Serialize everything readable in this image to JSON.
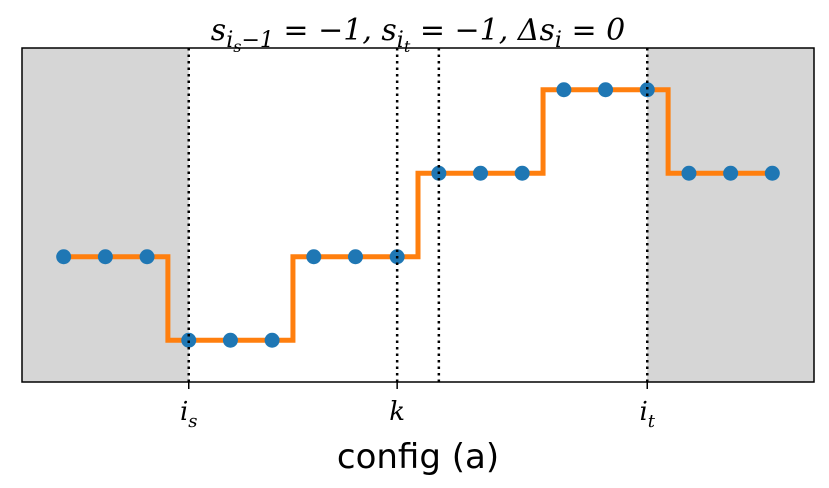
{
  "chart_data": {
    "type": "step",
    "title": [
      {
        "text": "s",
        "level": 0
      },
      {
        "text": "i",
        "level": 1
      },
      {
        "text": "s",
        "level": 2
      },
      {
        "text": "−1",
        "level": 1
      },
      {
        "text": " = −1, s",
        "level": 0
      },
      {
        "text": "i",
        "level": 1
      },
      {
        "text": "t",
        "level": 2
      },
      {
        "text": " = −1, Δs",
        "level": 0
      },
      {
        "text": "i",
        "level": 1
      },
      {
        "text": " = 0",
        "level": 0
      }
    ],
    "xlabel": "config (a)",
    "x": [
      0,
      1,
      2,
      3,
      4,
      5,
      6,
      7,
      8,
      9,
      10,
      11,
      12,
      13,
      14,
      15,
      16,
      17
    ],
    "values": [
      0,
      0,
      0,
      -1,
      -1,
      -1,
      0,
      0,
      0,
      1,
      1,
      1,
      2,
      2,
      2,
      1,
      1,
      1
    ],
    "line_color": "#ff7f0e",
    "marker_color": "#1f77b4",
    "step": "mid",
    "xlim": [
      -1,
      18
    ],
    "ylim": [
      -1.5,
      2.5
    ],
    "xticks": [
      {
        "value": 3,
        "label": "i_s"
      },
      {
        "value": 8,
        "label": "k"
      },
      {
        "value": 14,
        "label": "i_t"
      }
    ],
    "vlines": [
      3,
      8,
      9,
      14
    ],
    "shaded": [
      [
        -1,
        3
      ],
      [
        14,
        18
      ]
    ],
    "shade_color": "#d6d6d6"
  }
}
